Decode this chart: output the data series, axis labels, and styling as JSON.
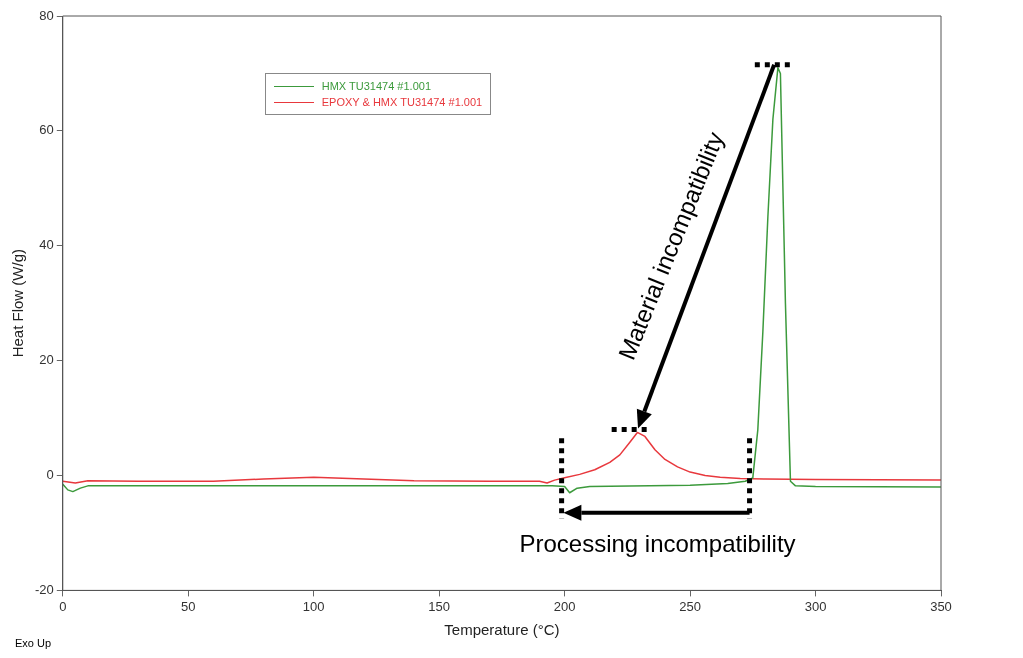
{
  "chart_data": {
    "type": "line",
    "xlabel": "Temperature (°C)",
    "ylabel": "Heat Flow (W/g)",
    "xlim": [
      0,
      350
    ],
    "xticks": [
      0,
      50,
      100,
      150,
      200,
      250,
      300,
      350
    ],
    "ylim": [
      -20,
      80
    ],
    "yticks": [
      -20,
      0,
      20,
      40,
      60,
      80
    ],
    "grid": false,
    "legend": "top left",
    "marker": "none",
    "line_style": "solid",
    "annotations": [
      "Material incompatibility",
      "Processing incompatibility",
      "Exo Up"
    ],
    "series": [
      {
        "name": "HMX TU31474 #1.001",
        "color": "#3c9a3c",
        "x": [
          0,
          2,
          4,
          7,
          10,
          50,
          100,
          150,
          195,
          200,
          202,
          205,
          210,
          250,
          265,
          272,
          275,
          277,
          279,
          281,
          283,
          285,
          286,
          288,
          290,
          292,
          300,
          350
        ],
        "values": [
          -1.5,
          -2.5,
          -2.8,
          -2.2,
          -1.8,
          -1.8,
          -1.8,
          -1.8,
          -1.8,
          -1.9,
          -3,
          -2.2,
          -1.9,
          -1.7,
          -1.4,
          -1,
          -0.4,
          8,
          25,
          45,
          62,
          71,
          70,
          30,
          -1,
          -1.8,
          -1.9,
          -2
        ]
      },
      {
        "name": "EPOXY & HMX TU31474 #1.001",
        "color": "#e8383d",
        "x": [
          0,
          5,
          10,
          30,
          60,
          80,
          100,
          120,
          140,
          170,
          190,
          193,
          196,
          200,
          206,
          212,
          218,
          222,
          226,
          229,
          232,
          236,
          240,
          245,
          250,
          256,
          262,
          270,
          280,
          300,
          350
        ],
        "values": [
          -1,
          -1.3,
          -0.9,
          -1,
          -1,
          -0.6,
          -0.3,
          -0.6,
          -0.9,
          -1,
          -1,
          -1.3,
          -0.8,
          -0.4,
          0.2,
          1,
          2.3,
          3.6,
          5.8,
          7.5,
          6.8,
          4.5,
          2.8,
          1.5,
          0.6,
          0,
          -0.3,
          -0.5,
          -0.6,
          -0.7,
          -0.8
        ]
      }
    ]
  }
}
